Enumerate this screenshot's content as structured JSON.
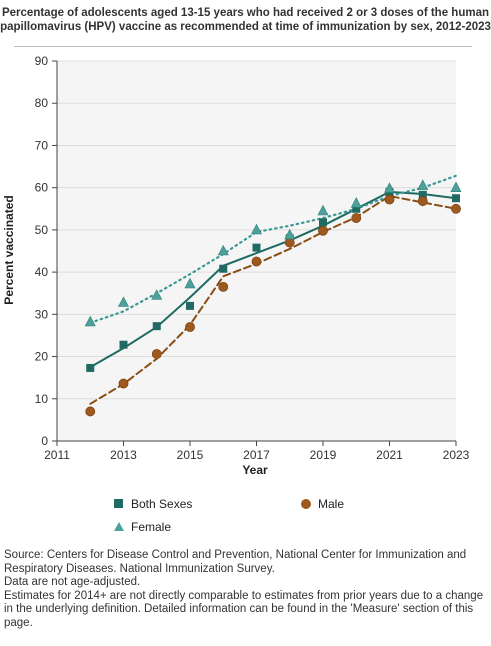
{
  "title": "Percentage of adolescents aged 13-15 years who had received 2 or 3 doses of the human papillomavirus (HPV) vaccine as recommended at time of immunization by sex, 2012-2023",
  "colors": {
    "both_sexes": "#1f6b63",
    "male": "#8a4e14",
    "male_marker": "#a0591c",
    "female": "#3a9a93",
    "female_marker": "#4ea19a",
    "plot_bg": "#f5f5f5",
    "grid": "#dddddd"
  },
  "chart_data": {
    "type": "scatter",
    "xlabel": "Year",
    "ylabel": "Percent vaccinated",
    "xlim": [
      2011,
      2023
    ],
    "ylim": [
      0,
      90
    ],
    "x_ticks": [
      2011,
      2013,
      2015,
      2017,
      2019,
      2021,
      2023
    ],
    "y_ticks": [
      0,
      10,
      20,
      30,
      40,
      50,
      60,
      70,
      80,
      90
    ],
    "grid": true,
    "legend_placement": "bottom",
    "series": [
      {
        "name": "Both Sexes",
        "marker": "square",
        "line_style": "solid",
        "x": [
          2012,
          2013,
          2014,
          2015,
          2016,
          2017,
          2018,
          2019,
          2020,
          2021,
          2022,
          2023
        ],
        "values": [
          17.3,
          22.8,
          27.2,
          32,
          40.8,
          45.8,
          48,
          51.8,
          55,
          59,
          58.3,
          57.5
        ],
        "trend_x": [
          2012,
          2013,
          2014,
          2015,
          2016,
          2017,
          2018,
          2019,
          2020,
          2021,
          2022,
          2023
        ],
        "trend_values": [
          17.5,
          22,
          27,
          34,
          41.5,
          44.5,
          47.5,
          51,
          55,
          59,
          58.5,
          57.5
        ]
      },
      {
        "name": "Male",
        "marker": "circle",
        "line_style": "dashed",
        "x": [
          2012,
          2013,
          2014,
          2015,
          2016,
          2017,
          2018,
          2019,
          2020,
          2021,
          2022,
          2023
        ],
        "values": [
          7,
          13.6,
          20.6,
          27,
          36.5,
          42.5,
          47,
          49.8,
          52.8,
          57.2,
          56.8,
          55
        ],
        "trend_x": [
          2012,
          2013,
          2014,
          2015,
          2016,
          2017,
          2018,
          2019,
          2020,
          2021,
          2022,
          2023
        ],
        "trend_values": [
          8.8,
          13.5,
          19.5,
          27.5,
          39,
          42,
          45.5,
          49.5,
          53,
          58,
          56.5,
          55
        ]
      },
      {
        "name": "Female",
        "marker": "triangle",
        "line_style": "dotted",
        "x": [
          2012,
          2013,
          2014,
          2015,
          2016,
          2017,
          2018,
          2019,
          2020,
          2021,
          2022,
          2023
        ],
        "values": [
          28.2,
          32.8,
          34.5,
          37.2,
          45,
          50,
          48.8,
          54.5,
          56.3,
          59.8,
          60.5,
          60
        ],
        "trend_x": [
          2012,
          2013,
          2014,
          2015,
          2016,
          2017,
          2018,
          2019,
          2020,
          2021,
          2022,
          2023
        ],
        "trend_values": [
          28,
          30.7,
          35,
          39.5,
          44.3,
          49.5,
          51,
          52.8,
          55,
          58,
          60,
          62.8
        ]
      }
    ]
  },
  "legend": {
    "both_sexes": "Both Sexes",
    "male": "Male",
    "female": "Female"
  },
  "notes": {
    "source": "Source: Centers for Disease Control and Prevention, National Center for Immunization and Respiratory Diseases. National Immunization Survey.",
    "age_adjust": "Data are not age-adjusted.",
    "comparability": "Estimates for 2014+ are not directly comparable to estimates from prior years due to a change in the underlying definition. Detailed information can be found in the 'Measure' section of this page."
  }
}
